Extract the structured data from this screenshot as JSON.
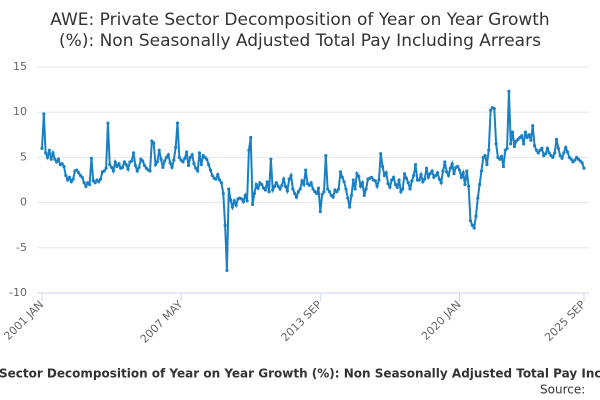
{
  "chart_data": {
    "type": "line",
    "title": "AWE: Private Sector Decomposition of Year on Year Growth (%): Non Seasonally Adjusted Total Pay Including Arrears",
    "source": "Source:",
    "categories": [
      "2001 JAN",
      null,
      null,
      null,
      null,
      null,
      null,
      null,
      null,
      null,
      null,
      null,
      null,
      null,
      null,
      null,
      null,
      null,
      null,
      null,
      null,
      null,
      null,
      null,
      null,
      null,
      null,
      null,
      null,
      null,
      null,
      null,
      null,
      null,
      null,
      null,
      null,
      null,
      null,
      null,
      null,
      null,
      null,
      null,
      null,
      null,
      null,
      null,
      null,
      null,
      null,
      null,
      null,
      null,
      null,
      null,
      null,
      null,
      null,
      null,
      null,
      null,
      null,
      null,
      null,
      null,
      null,
      null,
      null,
      null,
      null,
      null,
      null,
      null,
      null,
      null,
      "2007 MAY",
      null,
      null,
      null,
      null,
      null,
      null,
      null,
      null,
      null,
      null,
      null,
      null,
      null,
      null,
      null,
      null,
      null,
      null,
      null,
      null,
      null,
      null,
      null,
      null,
      null,
      null,
      null,
      null,
      null,
      null,
      null,
      null,
      null,
      null,
      null,
      null,
      null,
      null,
      null,
      null,
      null,
      null,
      null,
      null,
      null,
      null,
      null,
      null,
      null,
      null,
      null,
      null,
      null,
      null,
      null,
      null,
      null,
      null,
      null,
      null,
      null,
      null,
      null,
      null,
      null,
      null,
      null,
      null,
      null,
      null,
      null,
      null,
      null,
      null,
      null,
      "2013 SEP",
      null,
      null,
      null,
      null,
      null,
      null,
      null,
      null,
      null,
      null,
      null,
      null,
      null,
      null,
      null,
      null,
      null,
      null,
      null,
      null,
      null,
      null,
      null,
      null,
      null,
      null,
      null,
      null,
      null,
      null,
      null,
      null,
      null,
      null,
      null,
      null,
      null,
      null,
      null,
      null,
      null,
      null,
      null,
      null,
      null,
      null,
      null,
      null,
      null,
      null,
      null,
      null,
      null,
      null,
      null,
      null,
      null,
      null,
      null,
      null,
      null,
      null,
      null,
      null,
      null,
      null,
      null,
      null,
      null,
      null,
      null,
      null,
      null,
      null,
      null,
      "2020 JAN",
      null,
      null,
      null,
      null,
      null,
      null,
      null,
      null,
      null,
      null,
      null,
      null,
      null,
      null,
      null,
      null,
      null,
      null,
      null,
      null,
      null,
      null,
      null,
      null,
      null,
      null,
      null,
      null,
      null,
      null,
      null,
      null,
      null,
      null,
      null,
      null,
      null,
      null,
      null,
      null,
      null,
      null,
      null,
      null,
      null,
      null,
      null,
      null,
      null,
      null,
      null,
      null,
      null,
      null,
      null,
      null,
      null,
      null,
      null,
      null,
      null,
      null,
      null,
      null,
      null,
      null,
      null,
      "2025 SEP"
    ],
    "series": [
      {
        "color": "#1a80c4",
        "values": [
          6,
          9.8,
          5.5,
          5,
          5.8,
          4.8,
          5.5,
          4.8,
          4.5,
          4.8,
          4.2,
          4.3,
          4,
          3,
          2.5,
          2.8,
          2.3,
          2.6,
          3.5,
          3.6,
          3.3,
          3.0,
          2.8,
          2.2,
          1.8,
          2.2,
          2.0,
          4.9,
          2.4,
          2.2,
          2.5,
          2.3,
          2.6,
          3.4,
          3.5,
          3.8,
          8.8,
          4.2,
          3.9,
          3.5,
          4.5,
          4.0,
          4.3,
          3.8,
          3.9,
          4.5,
          4.2,
          3.7,
          4.5,
          4.6,
          5.5,
          4.1,
          3.5,
          3.9,
          4.8,
          4.6,
          4.1,
          3.8,
          3.6,
          3.5,
          6.8,
          6.6,
          4.2,
          4.5,
          5.8,
          4.8,
          3.9,
          4.6,
          5.0,
          5.3,
          4.4,
          3.9,
          4.7,
          6.1,
          8.8,
          5.0,
          4.7,
          4.5,
          4.9,
          5.6,
          4.1,
          5.0,
          5.3,
          4.3,
          3.8,
          3.5,
          5.5,
          4.2,
          5.2,
          5.0,
          4.8,
          4.2,
          3.6,
          3.0,
          2.7,
          2.6,
          3.1,
          2.5,
          2.2,
          1.0,
          -2.5,
          -7.5,
          1.5,
          0.3,
          -0.5,
          0.2,
          -0.3,
          0.4,
          0.5,
          0.4,
          0.1,
          0.8,
          0.2,
          5.8,
          7.2,
          -0.2,
          1.0,
          2.0,
          1.6,
          2.2,
          2.0,
          1.6,
          1.4,
          2.3,
          1.2,
          4.8,
          1.4,
          1.8,
          2.2,
          1.8,
          1.5,
          1.9,
          2.6,
          1.8,
          1.3,
          2.6,
          3.0,
          1.5,
          1.0,
          0.6,
          1.2,
          1.5,
          2.4,
          2.0,
          3.6,
          2.1,
          1.9,
          2.2,
          1.5,
          1.2,
          1.0,
          1.6,
          -1.0,
          0.9,
          1.2,
          5.2,
          1.5,
          1.2,
          0.8,
          0.6,
          1.4,
          1.2,
          1.5,
          3.4,
          2.8,
          2.3,
          1.5,
          0.5,
          -0.5,
          0.8,
          2.5,
          1.5,
          3.2,
          2.9,
          1.8,
          2.2,
          0.8,
          1.5,
          2.6,
          2.7,
          2.8,
          2.5,
          2.4,
          1.8,
          2.5,
          5.4,
          4.0,
          3.0,
          3.3,
          2.1,
          1.7,
          2.5,
          2.8,
          2.0,
          1.7,
          2.5,
          1.2,
          1.5,
          3.2,
          2.7,
          2.2,
          1.5,
          2.4,
          3.0,
          4.2,
          2.5,
          2.5,
          3.1,
          2.3,
          2.6,
          3.8,
          2.8,
          3.2,
          3.5,
          2.8,
          3.0,
          3.3,
          2.6,
          2.2,
          3.5,
          4.5,
          3.4,
          3.0,
          3.8,
          4.3,
          3.2,
          3.9,
          4.0,
          3.6,
          2.8,
          3.3,
          2.0,
          3.5,
          1.8,
          -2.0,
          -2.5,
          -2.8,
          -1.5,
          0.5,
          2.0,
          3.5,
          5.0,
          5.2,
          4.2,
          5.8,
          10.2,
          10.5,
          10.4,
          6.5,
          5.0,
          4.8,
          5.1,
          4.0,
          5.8,
          6.0,
          12.3,
          6.5,
          7.8,
          6.2,
          6.8,
          7.0,
          7.2,
          7.4,
          6.5,
          7.8,
          7.2,
          7.5,
          6.9,
          8.5,
          6.3,
          5.8,
          5.5,
          5.8,
          6.0,
          5.2,
          5.4,
          6.0,
          5.5,
          5.2,
          5.0,
          5.5,
          7.0,
          6.0,
          5.2,
          4.9,
          5.5,
          6.1,
          5.6,
          5.0,
          4.8,
          4.5,
          4.7,
          5.0,
          4.8,
          4.6,
          4.4,
          3.8
        ]
      }
    ],
    "ylim": [
      -10,
      15
    ],
    "yticks": [
      -10,
      -5,
      0,
      5,
      10,
      15
    ],
    "grid": true
  }
}
